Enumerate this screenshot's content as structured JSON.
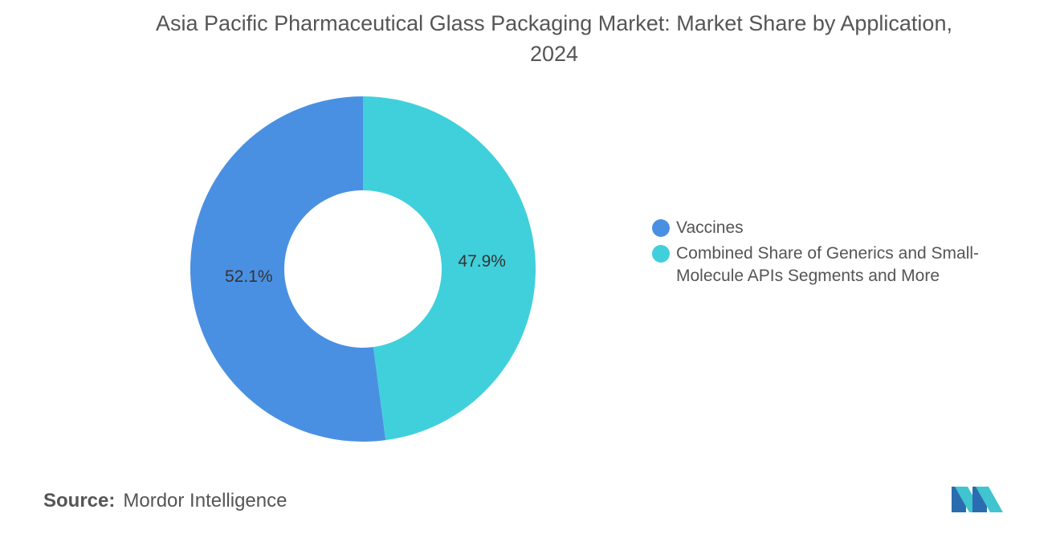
{
  "page": {
    "title": "Asia Pacific Pharmaceutical Glass Packaging Market: Market Share by Application, 2024",
    "source_label": "Source:",
    "source_value": "Mordor Intelligence"
  },
  "chart_data": {
    "type": "pie",
    "donut": true,
    "title": "Asia Pacific Pharmaceutical Glass Packaging Market: Market Share by Application, 2024",
    "categories": [
      "Vaccines",
      "Combined Share of Generics and Small-Molecule APIs Segments and More"
    ],
    "values": [
      52.1,
      47.9
    ],
    "labels": [
      "52.1%",
      "47.9%"
    ],
    "colors": [
      "#4a90e2",
      "#40d0dc"
    ],
    "legend_position": "right"
  }
}
